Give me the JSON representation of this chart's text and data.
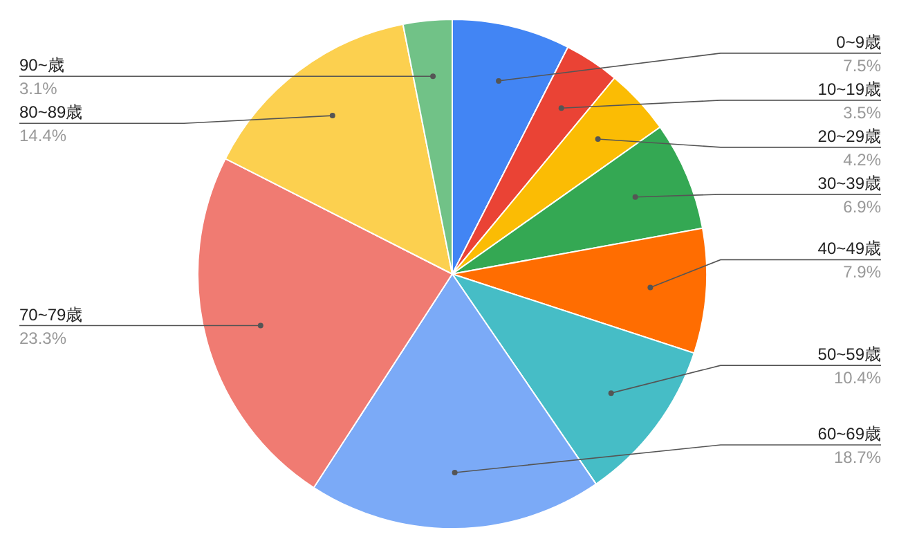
{
  "chart_data": {
    "type": "pie",
    "categories": [
      "0~9歳",
      "10~19歳",
      "20~29歳",
      "30~39歳",
      "40~49歳",
      "50~59歳",
      "60~69歳",
      "70~79歳",
      "80~89歳",
      "90~歳"
    ],
    "values": [
      7.5,
      3.5,
      4.2,
      6.9,
      7.9,
      10.4,
      18.7,
      23.3,
      14.4,
      3.1
    ],
    "value_labels": [
      "7.5%",
      "3.5%",
      "4.2%",
      "6.9%",
      "7.9%",
      "10.4%",
      "18.7%",
      "23.3%",
      "14.4%",
      "3.1%"
    ],
    "colors": [
      "#4285f4",
      "#ea4335",
      "#fbbc04",
      "#34a853",
      "#ff6d01",
      "#46bdc6",
      "#7baaf7",
      "#f07b72",
      "#fcd04f",
      "#71c287"
    ]
  }
}
